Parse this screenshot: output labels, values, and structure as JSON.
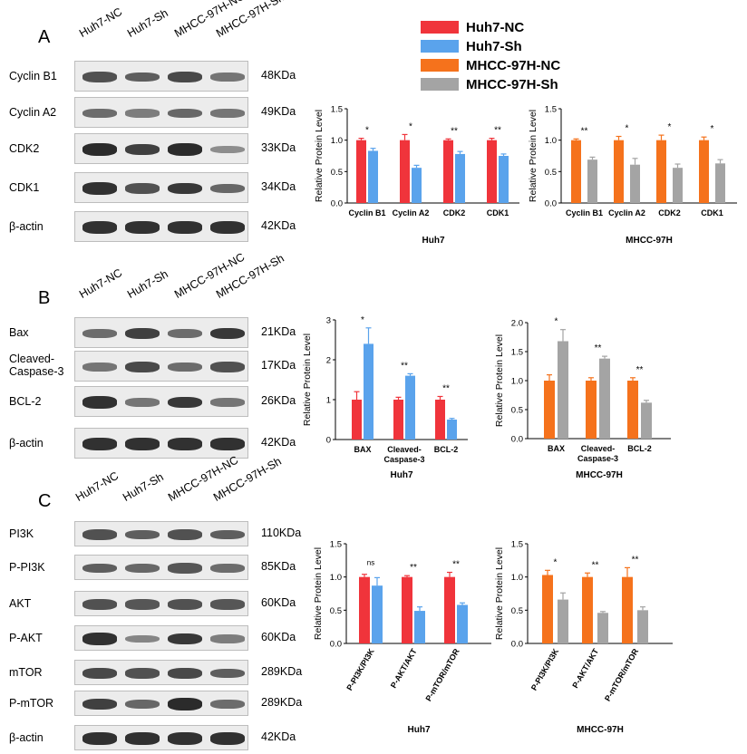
{
  "colors": {
    "huh7_nc": "#f0343b",
    "huh7_sh": "#5aa3ec",
    "mhcc_nc": "#f5721c",
    "mhcc_sh": "#a4a4a4"
  },
  "legend": [
    "Huh7-NC",
    "Huh7-Sh",
    "MHCC-97H-NC",
    "MHCC-97H-Sh"
  ],
  "lanes": [
    "Huh7-NC",
    "Huh7-Sh",
    "MHCC-97H-NC",
    "MHCC-97H-Sh"
  ],
  "panels": [
    {
      "letter": "A",
      "rows": [
        {
          "label": "Cyclin B1",
          "kda": "48KDa",
          "bands": [
            0.7,
            0.6,
            0.75,
            0.45
          ]
        },
        {
          "label": "Cyclin A2",
          "kda": "49KDa",
          "bands": [
            0.5,
            0.4,
            0.55,
            0.45
          ]
        },
        {
          "label": "CDK2",
          "kda": "33KDa",
          "bands": [
            0.95,
            0.8,
            0.95,
            0.3
          ]
        },
        {
          "label": "CDK1",
          "kda": "34KDa",
          "bands": [
            0.9,
            0.7,
            0.85,
            0.55
          ]
        },
        {
          "label": "β-actin",
          "kda": "42KDa",
          "bands": [
            0.9,
            0.9,
            0.9,
            0.9
          ]
        }
      ]
    },
    {
      "letter": "B",
      "rows": [
        {
          "label": "Bax",
          "kda": "21KDa",
          "bands": [
            0.5,
            0.8,
            0.5,
            0.85
          ]
        },
        {
          "label": "Cleaved-\nCaspase-3",
          "kda": "17KDa",
          "bands": [
            0.45,
            0.75,
            0.5,
            0.7
          ]
        },
        {
          "label": "BCL-2",
          "kda": "26KDa",
          "bands": [
            0.9,
            0.45,
            0.85,
            0.45
          ]
        },
        {
          "label": "β-actin",
          "kda": "42KDa",
          "bands": [
            0.9,
            0.9,
            0.9,
            0.9
          ]
        }
      ]
    },
    {
      "letter": "C",
      "rows": [
        {
          "label": "PI3K",
          "kda": "110KDa",
          "bands": [
            0.7,
            0.6,
            0.7,
            0.6
          ]
        },
        {
          "label": "P-PI3K",
          "kda": "85KDa",
          "bands": [
            0.6,
            0.55,
            0.65,
            0.5
          ]
        },
        {
          "label": "AKT",
          "kda": "60KDa",
          "bands": [
            0.7,
            0.65,
            0.7,
            0.65
          ]
        },
        {
          "label": "P-AKT",
          "kda": "60KDa",
          "bands": [
            0.9,
            0.35,
            0.85,
            0.4
          ]
        },
        {
          "label": "mTOR",
          "kda": "289KDa",
          "bands": [
            0.75,
            0.7,
            0.75,
            0.6
          ]
        },
        {
          "label": "P-mTOR",
          "kda": "289KDa",
          "bands": [
            0.8,
            0.55,
            0.95,
            0.5
          ]
        },
        {
          "label": "β-actin",
          "kda": "42KDa",
          "bands": [
            0.9,
            0.9,
            0.9,
            0.9
          ]
        }
      ]
    }
  ],
  "chart_data": [
    {
      "type": "bar",
      "title": "",
      "xlabel": "Huh7",
      "ylabel": "Relative Protein Level",
      "ylim": [
        0,
        1.5
      ],
      "yticks": [
        "0.0",
        "0.5",
        "1.0",
        "1.5"
      ],
      "categories": [
        "Cyclin B1",
        "Cyclin A2",
        "CDK2",
        "CDK1"
      ],
      "series": [
        {
          "name": "Huh7-NC",
          "values": [
            1.0,
            1.0,
            1.0,
            1.0
          ],
          "errors": [
            0.03,
            0.09,
            0.02,
            0.03
          ]
        },
        {
          "name": "Huh7-Sh",
          "values": [
            0.83,
            0.56,
            0.78,
            0.75
          ],
          "errors": [
            0.04,
            0.04,
            0.04,
            0.03
          ]
        }
      ],
      "significance": [
        "*",
        "*",
        "**",
        "**"
      ]
    },
    {
      "type": "bar",
      "title": "",
      "xlabel": "MHCC-97H",
      "ylabel": "Relative Protein Level",
      "ylim": [
        0,
        1.5
      ],
      "yticks": [
        "0.0",
        "0.5",
        "1.0",
        "1.5"
      ],
      "categories": [
        "Cyclin B1",
        "Cyclin A2",
        "CDK2",
        "CDK1"
      ],
      "series": [
        {
          "name": "MHCC-97H-NC",
          "values": [
            1.0,
            1.0,
            1.0,
            1.0
          ],
          "errors": [
            0.02,
            0.06,
            0.08,
            0.05
          ]
        },
        {
          "name": "MHCC-97H-Sh",
          "values": [
            0.69,
            0.61,
            0.56,
            0.63
          ],
          "errors": [
            0.04,
            0.1,
            0.06,
            0.06
          ]
        }
      ],
      "significance": [
        "**",
        "*",
        "*",
        "*"
      ]
    },
    {
      "type": "bar",
      "title": "",
      "xlabel": "Huh7",
      "ylabel": "Relative Protein Level",
      "ylim": [
        0,
        3
      ],
      "yticks": [
        "0",
        "1",
        "2",
        "3"
      ],
      "categories": [
        "BAX",
        "Cleaved-\nCaspase-3",
        "BCL-2"
      ],
      "series": [
        {
          "name": "Huh7-NC",
          "values": [
            1.0,
            1.0,
            1.0
          ],
          "errors": [
            0.2,
            0.06,
            0.08
          ]
        },
        {
          "name": "Huh7-Sh",
          "values": [
            2.4,
            1.6,
            0.5
          ],
          "errors": [
            0.4,
            0.05,
            0.03
          ]
        }
      ],
      "significance": [
        "*",
        "**",
        "**"
      ]
    },
    {
      "type": "bar",
      "title": "",
      "xlabel": "MHCC-97H",
      "ylabel": "Relative Protein Level",
      "ylim": [
        0,
        2.0
      ],
      "yticks": [
        "0.0",
        "0.5",
        "1.0",
        "1.5",
        "2.0"
      ],
      "categories": [
        "BAX",
        "Cleaved-\nCaspase-3",
        "BCL-2"
      ],
      "series": [
        {
          "name": "MHCC-97H-NC",
          "values": [
            1.0,
            1.0,
            1.0
          ],
          "errors": [
            0.1,
            0.05,
            0.05
          ]
        },
        {
          "name": "MHCC-97H-Sh",
          "values": [
            1.68,
            1.38,
            0.62
          ],
          "errors": [
            0.2,
            0.04,
            0.04
          ]
        }
      ],
      "significance": [
        "*",
        "**",
        "**"
      ]
    },
    {
      "type": "bar",
      "title": "",
      "xlabel": "Huh7",
      "ylabel": "Relative Protein Level",
      "ylim": [
        0,
        1.5
      ],
      "yticks": [
        "0.0",
        "0.5",
        "1.0",
        "1.5"
      ],
      "categories": [
        "P-PI3K/PI3K",
        "P-AKT/AKT",
        "P-mTOR/mTOR"
      ],
      "series": [
        {
          "name": "Huh7-NC",
          "values": [
            1.0,
            1.0,
            1.0
          ],
          "errors": [
            0.04,
            0.02,
            0.07
          ]
        },
        {
          "name": "Huh7-Sh",
          "values": [
            0.87,
            0.49,
            0.58
          ],
          "errors": [
            0.12,
            0.06,
            0.03
          ]
        }
      ],
      "significance": [
        "ns",
        "**",
        "**"
      ]
    },
    {
      "type": "bar",
      "title": "",
      "xlabel": "MHCC-97H",
      "ylabel": "Relative Protein Level",
      "ylim": [
        0,
        1.5
      ],
      "yticks": [
        "0.0",
        "0.5",
        "1.0",
        "1.5"
      ],
      "categories": [
        "P-PI3K/PI3K",
        "P-AKT/AKT",
        "P-mTOR/mTOR"
      ],
      "series": [
        {
          "name": "MHCC-97H-NC",
          "values": [
            1.03,
            1.0,
            1.0
          ],
          "errors": [
            0.07,
            0.06,
            0.14
          ]
        },
        {
          "name": "MHCC-97H-Sh",
          "values": [
            0.66,
            0.46,
            0.5
          ],
          "errors": [
            0.1,
            0.02,
            0.05
          ]
        }
      ],
      "significance": [
        "*",
        "**",
        "**"
      ]
    }
  ]
}
